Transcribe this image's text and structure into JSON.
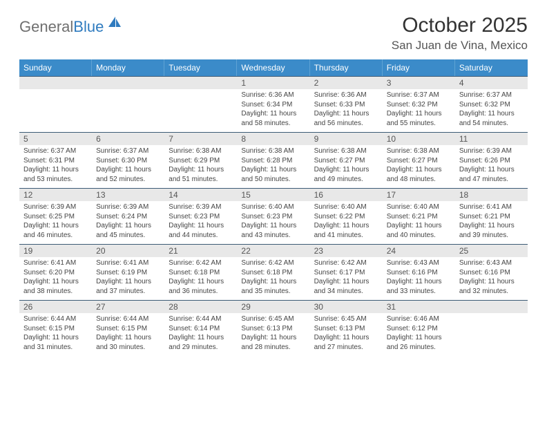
{
  "brand": {
    "part1": "General",
    "part2": "Blue"
  },
  "title": "October 2025",
  "location": "San Juan de Vina, Mexico",
  "colors": {
    "header_bg": "#3b8bc9",
    "header_text": "#ffffff",
    "daynum_bg": "#e8e8e8",
    "border_top": "#3b5a75",
    "body_text": "#444444",
    "title_text": "#333333"
  },
  "weekdays": [
    "Sunday",
    "Monday",
    "Tuesday",
    "Wednesday",
    "Thursday",
    "Friday",
    "Saturday"
  ],
  "weeks": [
    [
      null,
      null,
      null,
      {
        "n": "1",
        "sr": "6:36 AM",
        "ss": "6:34 PM",
        "dh": "11",
        "dm": "58"
      },
      {
        "n": "2",
        "sr": "6:36 AM",
        "ss": "6:33 PM",
        "dh": "11",
        "dm": "56"
      },
      {
        "n": "3",
        "sr": "6:37 AM",
        "ss": "6:32 PM",
        "dh": "11",
        "dm": "55"
      },
      {
        "n": "4",
        "sr": "6:37 AM",
        "ss": "6:32 PM",
        "dh": "11",
        "dm": "54"
      }
    ],
    [
      {
        "n": "5",
        "sr": "6:37 AM",
        "ss": "6:31 PM",
        "dh": "11",
        "dm": "53"
      },
      {
        "n": "6",
        "sr": "6:37 AM",
        "ss": "6:30 PM",
        "dh": "11",
        "dm": "52"
      },
      {
        "n": "7",
        "sr": "6:38 AM",
        "ss": "6:29 PM",
        "dh": "11",
        "dm": "51"
      },
      {
        "n": "8",
        "sr": "6:38 AM",
        "ss": "6:28 PM",
        "dh": "11",
        "dm": "50"
      },
      {
        "n": "9",
        "sr": "6:38 AM",
        "ss": "6:27 PM",
        "dh": "11",
        "dm": "49"
      },
      {
        "n": "10",
        "sr": "6:38 AM",
        "ss": "6:27 PM",
        "dh": "11",
        "dm": "48"
      },
      {
        "n": "11",
        "sr": "6:39 AM",
        "ss": "6:26 PM",
        "dh": "11",
        "dm": "47"
      }
    ],
    [
      {
        "n": "12",
        "sr": "6:39 AM",
        "ss": "6:25 PM",
        "dh": "11",
        "dm": "46"
      },
      {
        "n": "13",
        "sr": "6:39 AM",
        "ss": "6:24 PM",
        "dh": "11",
        "dm": "45"
      },
      {
        "n": "14",
        "sr": "6:39 AM",
        "ss": "6:23 PM",
        "dh": "11",
        "dm": "44"
      },
      {
        "n": "15",
        "sr": "6:40 AM",
        "ss": "6:23 PM",
        "dh": "11",
        "dm": "43"
      },
      {
        "n": "16",
        "sr": "6:40 AM",
        "ss": "6:22 PM",
        "dh": "11",
        "dm": "41"
      },
      {
        "n": "17",
        "sr": "6:40 AM",
        "ss": "6:21 PM",
        "dh": "11",
        "dm": "40"
      },
      {
        "n": "18",
        "sr": "6:41 AM",
        "ss": "6:21 PM",
        "dh": "11",
        "dm": "39"
      }
    ],
    [
      {
        "n": "19",
        "sr": "6:41 AM",
        "ss": "6:20 PM",
        "dh": "11",
        "dm": "38"
      },
      {
        "n": "20",
        "sr": "6:41 AM",
        "ss": "6:19 PM",
        "dh": "11",
        "dm": "37"
      },
      {
        "n": "21",
        "sr": "6:42 AM",
        "ss": "6:18 PM",
        "dh": "11",
        "dm": "36"
      },
      {
        "n": "22",
        "sr": "6:42 AM",
        "ss": "6:18 PM",
        "dh": "11",
        "dm": "35"
      },
      {
        "n": "23",
        "sr": "6:42 AM",
        "ss": "6:17 PM",
        "dh": "11",
        "dm": "34"
      },
      {
        "n": "24",
        "sr": "6:43 AM",
        "ss": "6:16 PM",
        "dh": "11",
        "dm": "33"
      },
      {
        "n": "25",
        "sr": "6:43 AM",
        "ss": "6:16 PM",
        "dh": "11",
        "dm": "32"
      }
    ],
    [
      {
        "n": "26",
        "sr": "6:44 AM",
        "ss": "6:15 PM",
        "dh": "11",
        "dm": "31"
      },
      {
        "n": "27",
        "sr": "6:44 AM",
        "ss": "6:15 PM",
        "dh": "11",
        "dm": "30"
      },
      {
        "n": "28",
        "sr": "6:44 AM",
        "ss": "6:14 PM",
        "dh": "11",
        "dm": "29"
      },
      {
        "n": "29",
        "sr": "6:45 AM",
        "ss": "6:13 PM",
        "dh": "11",
        "dm": "28"
      },
      {
        "n": "30",
        "sr": "6:45 AM",
        "ss": "6:13 PM",
        "dh": "11",
        "dm": "27"
      },
      {
        "n": "31",
        "sr": "6:46 AM",
        "ss": "6:12 PM",
        "dh": "11",
        "dm": "26"
      },
      null
    ]
  ],
  "labels": {
    "sunrise": "Sunrise:",
    "sunset": "Sunset:",
    "daylight_prefix": "Daylight:",
    "hours_word": "hours",
    "and_word": "and",
    "minutes_word": "minutes."
  }
}
